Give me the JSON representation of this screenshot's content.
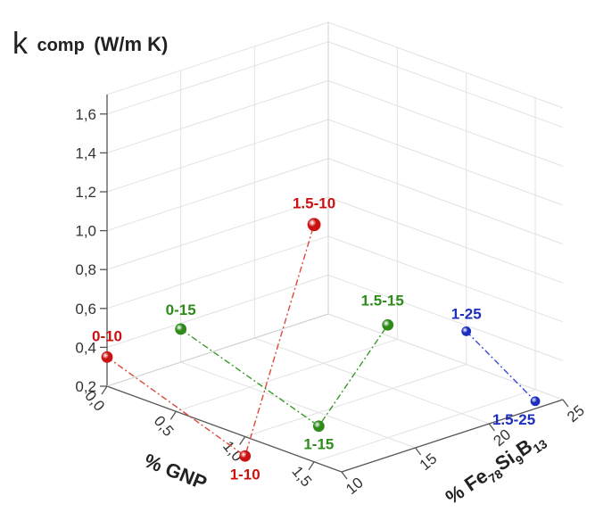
{
  "chart_data": {
    "type": "scatter",
    "z_axis": {
      "label": "k",
      "label_sub": "comp",
      "unit": "(W/m K)",
      "ticks": [
        "0,2",
        "0,4",
        "0,6",
        "0,8",
        "1,0",
        "1,2",
        "1,4",
        "1,6"
      ],
      "range": [
        0.2,
        1.7
      ]
    },
    "x_axis": {
      "label": "% GNP",
      "ticks": [
        "0,0",
        "0,5",
        "1,0",
        "1,5"
      ],
      "range": [
        0,
        1.7
      ]
    },
    "y_axis": {
      "label_parts": [
        "% Fe",
        "78",
        "Si",
        "9",
        "B",
        "13"
      ],
      "ticks": [
        "10",
        "15",
        "20",
        "25"
      ],
      "range": [
        10,
        25
      ]
    },
    "grid": true,
    "series": [
      {
        "color": "#cc1111",
        "line_color": "#d94a3a",
        "points": [
          {
            "label": "0-10",
            "x": 0,
            "y": 10,
            "z": 0.35
          },
          {
            "label": "1-10",
            "x": 1,
            "y": 10,
            "z": 0.1
          },
          {
            "label": "1.5-10",
            "x": 1.5,
            "y": 10,
            "z": 1.42
          }
        ]
      },
      {
        "color": "#2e8b1a",
        "line_color": "#3a9a2a",
        "points": [
          {
            "label": "0-15",
            "x": 0,
            "y": 15,
            "z": 0.37
          },
          {
            "label": "1-15",
            "x": 1,
            "y": 15,
            "z": 0.13
          },
          {
            "label": "1.5-15",
            "x": 1.5,
            "y": 15,
            "z": 0.78
          }
        ]
      },
      {
        "color": "#1c2ec0",
        "line_color": "#3a4ad0",
        "points": [
          {
            "label": "1-25",
            "x": 1,
            "y": 25,
            "z": 0.37
          },
          {
            "label": "1.5-25",
            "x": 1.5,
            "y": 25,
            "z": 0.14
          }
        ]
      }
    ]
  }
}
